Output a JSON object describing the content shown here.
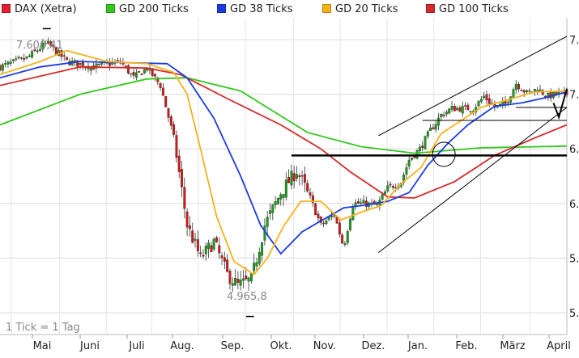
{
  "legend": [
    {
      "label": "DAX (Xetra)",
      "color": "#e0202e"
    },
    {
      "label": "GD 200 Ticks",
      "color": "#34c81e"
    },
    {
      "label": "GD 38 Ticks",
      "color": "#1b3be0"
    },
    {
      "label": "GD 20 Ticks",
      "color": "#f5b21c"
    },
    {
      "label": "GD 100 Ticks",
      "color": "#d42a2a"
    }
  ],
  "footnote": "1 Tick = 1 Tag",
  "annotations": {
    "high_label": "7.600,41",
    "low_label": "4.965,8"
  },
  "y_tick_labels": [
    "7.",
    "7.",
    "6.",
    "6.",
    "5.",
    "5."
  ],
  "chart_data": {
    "type": "candlestick",
    "x_ticks": [
      "Mai",
      "Juni",
      "Juli",
      "Aug.",
      "Sep.",
      "Okt.",
      "Nov.",
      "Dez.",
      "Jan.",
      "Feb.",
      "März",
      "April"
    ],
    "ylim": [
      4800,
      7700
    ],
    "y_ticks": [
      7500,
      7000,
      6500,
      6000,
      5500,
      5000
    ],
    "high": 7600.41,
    "low": 4965.8,
    "close_anchors": [
      [
        0,
        7250
      ],
      [
        20,
        7330
      ],
      [
        35,
        7470
      ],
      [
        50,
        7300
      ],
      [
        70,
        7250
      ],
      [
        90,
        7300
      ],
      [
        100,
        7150
      ],
      [
        110,
        7240
      ],
      [
        120,
        7080
      ],
      [
        130,
        6600
      ],
      [
        140,
        5800
      ],
      [
        150,
        5500
      ],
      [
        160,
        5650
      ],
      [
        170,
        5350
      ],
      [
        178,
        5250
      ],
      [
        188,
        5300
      ],
      [
        198,
        5800
      ],
      [
        210,
        6100
      ],
      [
        222,
        6300
      ],
      [
        232,
        6050
      ],
      [
        240,
        5800
      ],
      [
        250,
        5900
      ],
      [
        257,
        5600
      ],
      [
        264,
        6000
      ],
      [
        272,
        6000
      ],
      [
        282,
        5980
      ],
      [
        290,
        6140
      ],
      [
        300,
        6200
      ],
      [
        306,
        6400
      ],
      [
        314,
        6500
      ],
      [
        322,
        6670
      ],
      [
        330,
        6810
      ],
      [
        338,
        6870
      ],
      [
        346,
        6870
      ],
      [
        354,
        6870
      ],
      [
        362,
        6980
      ],
      [
        370,
        6880
      ],
      [
        378,
        6910
      ],
      [
        386,
        7100
      ],
      [
        394,
        7010
      ],
      [
        402,
        7050
      ],
      [
        410,
        6980
      ],
      [
        418,
        7010
      ],
      [
        424,
        7000
      ]
    ],
    "series": [
      {
        "name": "GD 200 Ticks",
        "color": "#34c81e",
        "points": [
          [
            0,
            6720
          ],
          [
            60,
            7000
          ],
          [
            110,
            7140
          ],
          [
            140,
            7150
          ],
          [
            180,
            7030
          ],
          [
            230,
            6650
          ],
          [
            270,
            6520
          ],
          [
            310,
            6460
          ],
          [
            360,
            6510
          ],
          [
            424,
            6525
          ]
        ]
      },
      {
        "name": "GD 100 Ticks",
        "color": "#d42a2a",
        "points": [
          [
            0,
            7080
          ],
          [
            60,
            7250
          ],
          [
            110,
            7240
          ],
          [
            135,
            7180
          ],
          [
            170,
            6960
          ],
          [
            210,
            6720
          ],
          [
            240,
            6500
          ],
          [
            262,
            6290
          ],
          [
            290,
            6060
          ],
          [
            310,
            6050
          ],
          [
            340,
            6200
          ],
          [
            370,
            6440
          ],
          [
            400,
            6600
          ],
          [
            424,
            6720
          ]
        ]
      },
      {
        "name": "GD 38 Ticks",
        "color": "#1b3be0",
        "points": [
          [
            0,
            7150
          ],
          [
            30,
            7250
          ],
          [
            60,
            7300
          ],
          [
            90,
            7290
          ],
          [
            125,
            7280
          ],
          [
            140,
            7150
          ],
          [
            160,
            6780
          ],
          [
            180,
            6250
          ],
          [
            195,
            5800
          ],
          [
            210,
            5540
          ],
          [
            226,
            5740
          ],
          [
            240,
            5840
          ],
          [
            257,
            5960
          ],
          [
            270,
            5980
          ],
          [
            290,
            6020
          ],
          [
            306,
            6100
          ],
          [
            320,
            6350
          ],
          [
            335,
            6550
          ],
          [
            350,
            6720
          ],
          [
            370,
            6890
          ],
          [
            390,
            6920
          ],
          [
            405,
            6960
          ],
          [
            424,
            7020
          ]
        ]
      },
      {
        "name": "GD 20 Ticks",
        "color": "#f5b21c",
        "points": [
          [
            0,
            7180
          ],
          [
            30,
            7300
          ],
          [
            50,
            7400
          ],
          [
            80,
            7300
          ],
          [
            110,
            7280
          ],
          [
            130,
            7200
          ],
          [
            140,
            7000
          ],
          [
            150,
            6500
          ],
          [
            162,
            5880
          ],
          [
            175,
            5470
          ],
          [
            190,
            5350
          ],
          [
            200,
            5500
          ],
          [
            212,
            5790
          ],
          [
            225,
            6020
          ],
          [
            240,
            6020
          ],
          [
            255,
            5850
          ],
          [
            270,
            5920
          ],
          [
            285,
            5980
          ],
          [
            300,
            6180
          ],
          [
            315,
            6330
          ],
          [
            330,
            6640
          ],
          [
            345,
            6760
          ],
          [
            360,
            6880
          ],
          [
            380,
            6950
          ],
          [
            400,
            7020
          ],
          [
            424,
            7030
          ]
        ]
      }
    ],
    "annotation_lines": {
      "support_level": 6440,
      "channel_upper": [
        [
          283,
          6620
        ],
        [
          424,
          7530
        ]
      ],
      "channel_lower": [
        [
          283,
          5550
        ],
        [
          424,
          6880
        ]
      ],
      "short_line_level": 6420,
      "short_line_level_2": 6760
    }
  }
}
